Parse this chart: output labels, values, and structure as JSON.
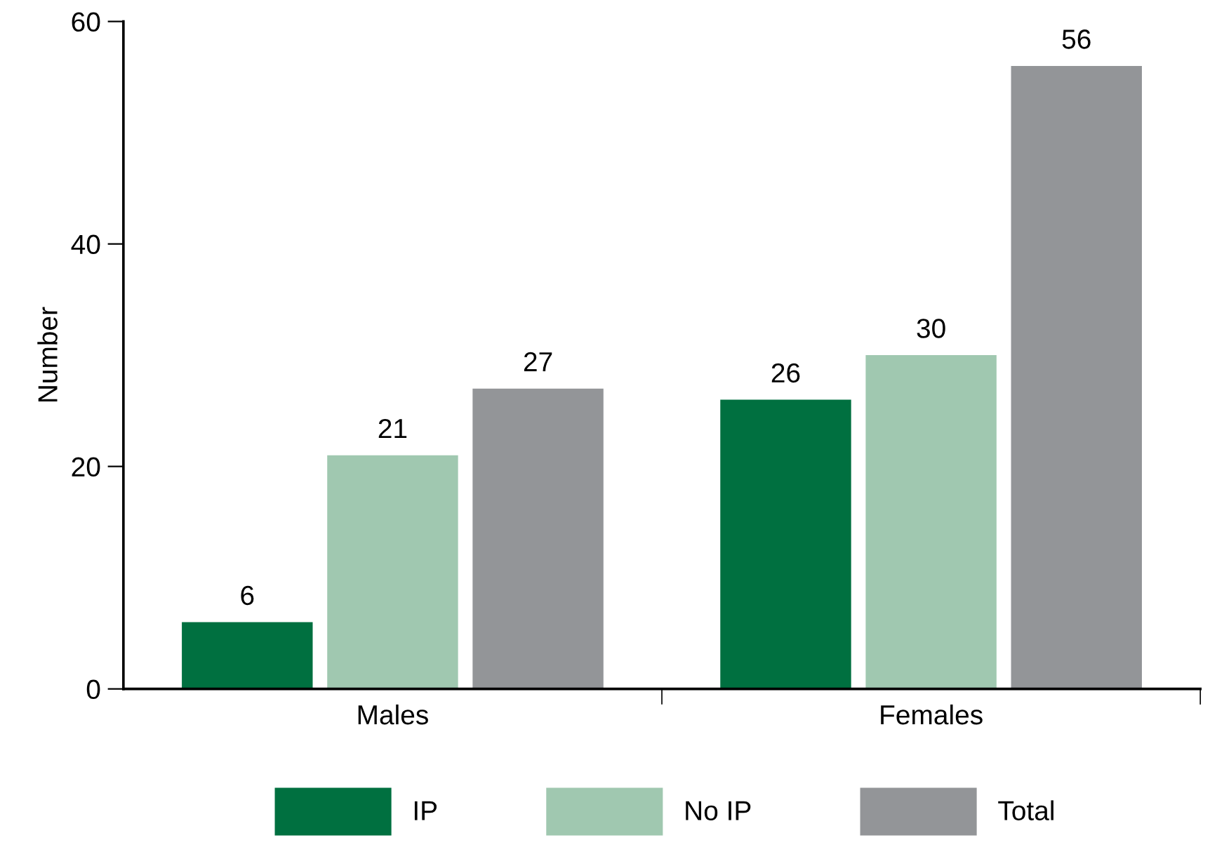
{
  "chart_data": {
    "type": "bar",
    "ylabel": "Number",
    "categories": [
      "Males",
      "Females"
    ],
    "series": [
      {
        "name": "IP",
        "color": "#007040",
        "values": [
          6,
          26
        ]
      },
      {
        "name": "No IP",
        "color": "#a0c8b0",
        "values": [
          21,
          30
        ]
      },
      {
        "name": "Total",
        "color": "#939598",
        "values": [
          27,
          56
        ]
      }
    ],
    "ylim": [
      0,
      60
    ],
    "yticks": [
      0,
      20,
      40,
      60
    ],
    "grid": false,
    "legend": "bottom",
    "data_labels": true
  }
}
